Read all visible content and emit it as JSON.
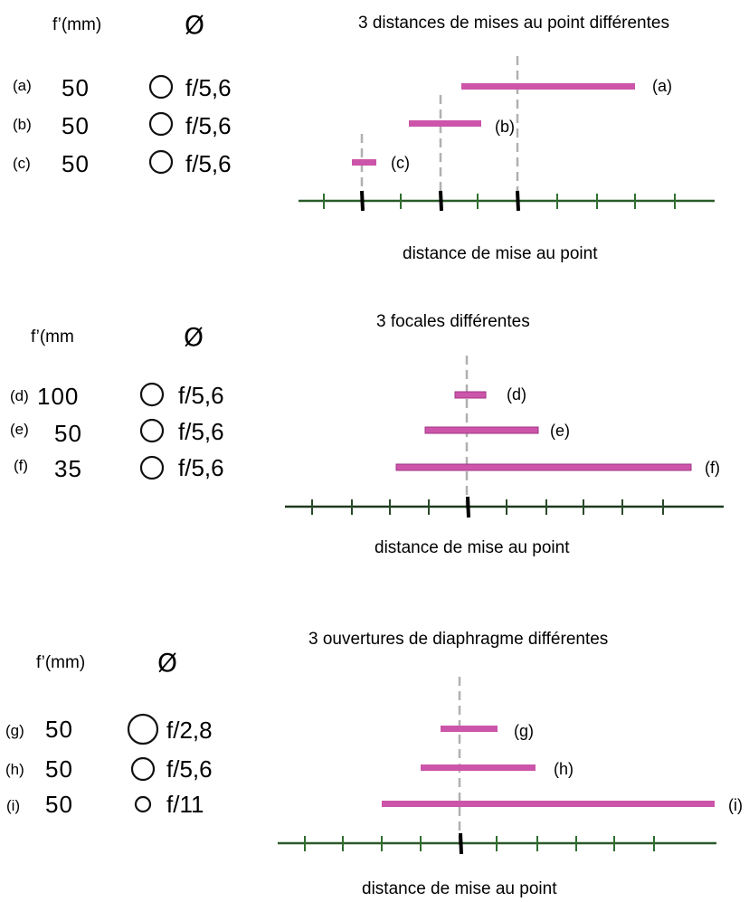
{
  "diameter_symbol": "Ø",
  "colors": {
    "dof_bar": "#cc55aa",
    "dof_bar_edge": "#a03585",
    "axis": "#2a5a2a",
    "axis_tick": "#2f6f2f",
    "focus_line": "#b0b0b0",
    "focus_mark": "#000000"
  },
  "panels": [
    {
      "title": "3 distances de mises au point différentes",
      "focal_header": "f’(mm)",
      "axis_label": "distance de mise au point",
      "rows": [
        {
          "letter": "(a)",
          "focal": "50",
          "aperture": "f/5,6",
          "bar_label": "(a)"
        },
        {
          "letter": "(b)",
          "focal": "50",
          "aperture": "f/5,6",
          "bar_label": "(b)"
        },
        {
          "letter": "(c)",
          "focal": "50",
          "aperture": "f/5,6",
          "bar_label": "(c)"
        }
      ]
    },
    {
      "title": "3 focales différentes",
      "focal_header": "f’(mm",
      "axis_label": "distance de mise au point",
      "rows": [
        {
          "letter": "(d)",
          "focal": "100",
          "aperture": "f/5,6",
          "bar_label": "(d)"
        },
        {
          "letter": "(e)",
          "focal": "50",
          "aperture": "f/5,6",
          "bar_label": "(e)"
        },
        {
          "letter": "(f)",
          "focal": "35",
          "aperture": "f/5,6",
          "bar_label": "(f)"
        }
      ]
    },
    {
      "title": "3 ouvertures de diaphragme différentes",
      "focal_header": "f’(mm)",
      "axis_label": "distance de mise au point",
      "rows": [
        {
          "letter": "(g)",
          "focal": "50",
          "aperture": "f/2,8",
          "bar_label": "(g)"
        },
        {
          "letter": "(h)",
          "focal": "50",
          "aperture": "f/5,6",
          "bar_label": "(h)"
        },
        {
          "letter": "(i)",
          "focal": "50",
          "aperture": "f/11",
          "bar_label": "(i)"
        }
      ]
    }
  ]
}
